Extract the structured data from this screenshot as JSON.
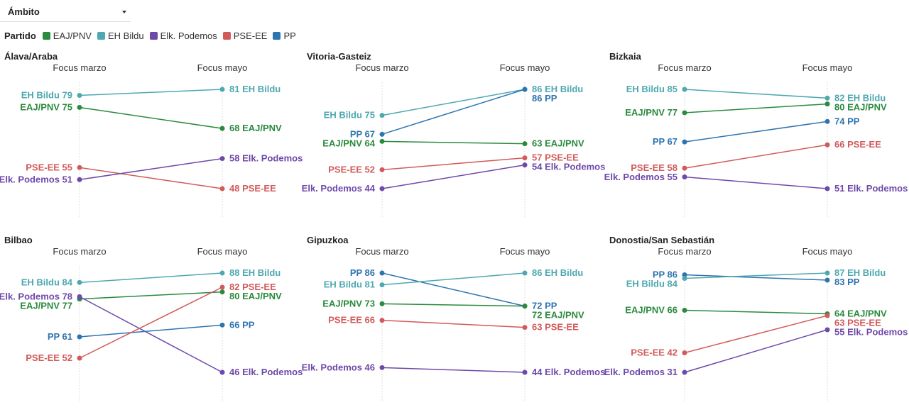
{
  "filter": {
    "label": "Ámbito"
  },
  "legend": {
    "title": "Partido",
    "items": [
      {
        "label": "EAJ/PNV",
        "color": "#2a8a3e"
      },
      {
        "label": "EH Bildu",
        "color": "#4ea8b0"
      },
      {
        "label": "Elk. Podemos",
        "color": "#6e48aa"
      },
      {
        "label": "PSE-EE",
        "color": "#d25a5a"
      },
      {
        "label": "PP",
        "color": "#2d74b0"
      }
    ]
  },
  "chart_data": [
    {
      "type": "slope",
      "title": "Álava/Araba",
      "columns": [
        "Focus marzo",
        "Focus mayo"
      ],
      "series": [
        {
          "name": "EH Bildu",
          "values": [
            79,
            81
          ]
        },
        {
          "name": "EAJ/PNV",
          "values": [
            75,
            68
          ]
        },
        {
          "name": "PSE-EE",
          "values": [
            55,
            48
          ]
        },
        {
          "name": "Elk. Podemos",
          "values": [
            51,
            58
          ]
        }
      ]
    },
    {
      "type": "slope",
      "title": "Vitoria-Gasteiz",
      "columns": [
        "Focus marzo",
        "Focus mayo"
      ],
      "series": [
        {
          "name": "EH Bildu",
          "values": [
            75,
            86
          ]
        },
        {
          "name": "PP",
          "values": [
            67,
            86
          ]
        },
        {
          "name": "EAJ/PNV",
          "values": [
            64,
            63
          ]
        },
        {
          "name": "PSE-EE",
          "values": [
            52,
            57
          ]
        },
        {
          "name": "Elk. Podemos",
          "values": [
            44,
            54
          ]
        }
      ]
    },
    {
      "type": "slope",
      "title": "Bizkaia",
      "columns": [
        "Focus marzo",
        "Focus mayo"
      ],
      "series": [
        {
          "name": "EH Bildu",
          "values": [
            85,
            82
          ]
        },
        {
          "name": "EAJ/PNV",
          "values": [
            77,
            80
          ]
        },
        {
          "name": "PP",
          "values": [
            67,
            74
          ]
        },
        {
          "name": "PSE-EE",
          "values": [
            58,
            66
          ]
        },
        {
          "name": "Elk. Podemos",
          "values": [
            55,
            51
          ]
        }
      ]
    },
    {
      "type": "slope",
      "title": "Bilbao",
      "columns": [
        "Focus marzo",
        "Focus mayo"
      ],
      "series": [
        {
          "name": "EH Bildu",
          "values": [
            84,
            88
          ]
        },
        {
          "name": "EAJ/PNV",
          "values": [
            77,
            80
          ]
        },
        {
          "name": "Elk. Podemos",
          "values": [
            78,
            46
          ]
        },
        {
          "name": "PP",
          "values": [
            61,
            66
          ]
        },
        {
          "name": "PSE-EE",
          "values": [
            52,
            82
          ]
        }
      ]
    },
    {
      "type": "slope",
      "title": "Gipuzkoa",
      "columns": [
        "Focus marzo",
        "Focus mayo"
      ],
      "series": [
        {
          "name": "PP",
          "values": [
            86,
            72
          ]
        },
        {
          "name": "EH Bildu",
          "values": [
            81,
            86
          ]
        },
        {
          "name": "EAJ/PNV",
          "values": [
            73,
            72
          ]
        },
        {
          "name": "PSE-EE",
          "values": [
            66,
            63
          ]
        },
        {
          "name": "Elk. Podemos",
          "values": [
            46,
            44
          ]
        }
      ]
    },
    {
      "type": "slope",
      "title": "Donostia/San Sebastián",
      "columns": [
        "Focus marzo",
        "Focus mayo"
      ],
      "series": [
        {
          "name": "PP",
          "values": [
            86,
            83
          ]
        },
        {
          "name": "EH Bildu",
          "values": [
            84,
            87
          ]
        },
        {
          "name": "EAJ/PNV",
          "values": [
            66,
            64
          ]
        },
        {
          "name": "PSE-EE",
          "values": [
            42,
            63
          ]
        },
        {
          "name": "Elk. Podemos",
          "values": [
            31,
            55
          ]
        }
      ]
    }
  ]
}
